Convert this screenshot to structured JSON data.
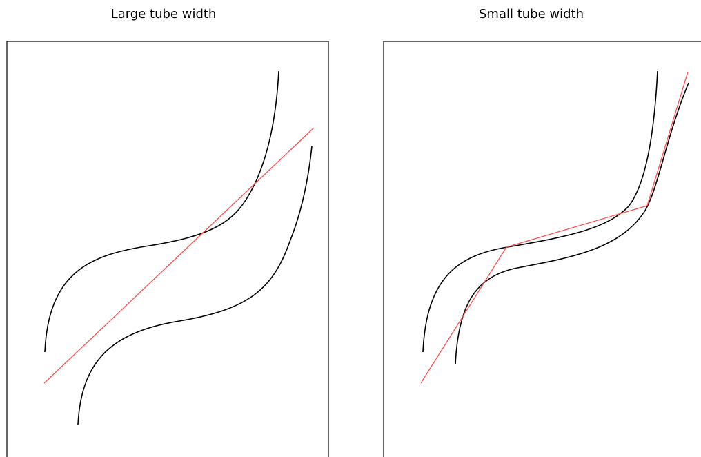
{
  "panels": [
    {
      "title": "Large tube width"
    },
    {
      "title": "Small tube width"
    }
  ],
  "colors": {
    "boundary_curve": "#000000",
    "fit_line": "#ff4d4d",
    "frame": "#000000"
  }
}
